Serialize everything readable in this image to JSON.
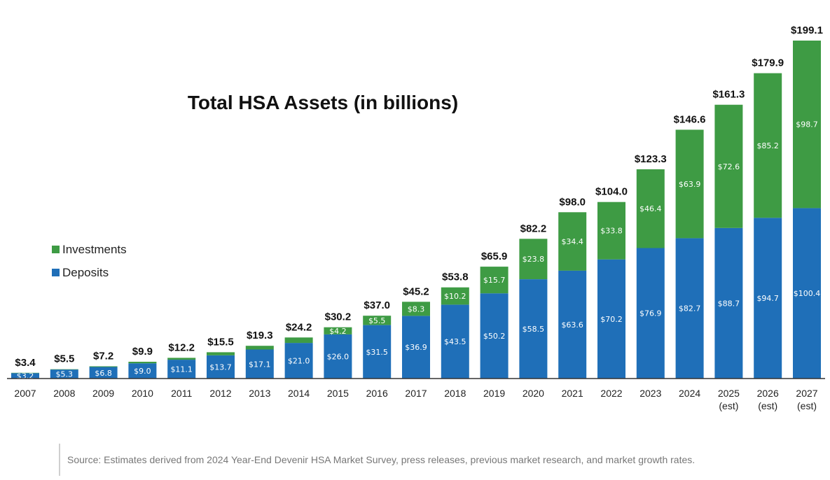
{
  "chart_data": {
    "type": "bar",
    "stacked": true,
    "title": "Total HSA Assets (in billions)",
    "categories": [
      [
        "2007"
      ],
      [
        "2008"
      ],
      [
        "2009"
      ],
      [
        "2010"
      ],
      [
        "2011"
      ],
      [
        "2012"
      ],
      [
        "2013"
      ],
      [
        "2014"
      ],
      [
        "2015"
      ],
      [
        "2016"
      ],
      [
        "2017"
      ],
      [
        "2018"
      ],
      [
        "2019"
      ],
      [
        "2020"
      ],
      [
        "2021"
      ],
      [
        "2022"
      ],
      [
        "2023"
      ],
      [
        "2024"
      ],
      [
        "2025",
        "(est)"
      ],
      [
        "2026",
        "(est)"
      ],
      [
        "2027",
        "(est)"
      ]
    ],
    "series": [
      {
        "name": "Deposits",
        "color": "#1f6fb8",
        "values": [
          3.2,
          5.3,
          6.8,
          9.0,
          11.1,
          13.7,
          17.1,
          21.0,
          26.0,
          31.5,
          36.9,
          43.5,
          50.2,
          58.5,
          63.6,
          70.2,
          76.9,
          82.7,
          88.7,
          94.7,
          100.4
        ],
        "value_labels": [
          "$3.2",
          "$5.3",
          "$6.8",
          "$9.0",
          "$11.1",
          "$13.7",
          "$17.1",
          "$21.0",
          "$26.0",
          "$31.5",
          "$36.9",
          "$43.5",
          "$50.2",
          "$58.5",
          "$63.6",
          "$70.2",
          "$76.9",
          "$82.7",
          "$88.7",
          "$94.7",
          "$100.4"
        ]
      },
      {
        "name": "Investments",
        "color": "#3e9b44",
        "values": [
          0.2,
          0.2,
          0.4,
          0.9,
          1.1,
          1.8,
          2.2,
          3.2,
          4.2,
          5.5,
          8.3,
          10.2,
          15.7,
          23.8,
          34.4,
          33.8,
          46.4,
          63.9,
          72.6,
          85.2,
          98.7
        ],
        "value_labels": [
          "",
          "",
          "",
          "",
          "",
          "",
          "",
          "",
          "$4.2",
          "$5.5",
          "$8.3",
          "$10.2",
          "$15.7",
          "$23.8",
          "$34.4",
          "$33.8",
          "$46.4",
          "$63.9",
          "$72.6",
          "$85.2",
          "$98.7"
        ]
      }
    ],
    "totals": [
      3.4,
      5.5,
      7.2,
      9.9,
      12.2,
      15.5,
      19.3,
      24.2,
      30.2,
      37.0,
      45.2,
      53.8,
      65.9,
      82.2,
      98.0,
      104.0,
      123.3,
      146.6,
      161.3,
      179.9,
      199.1
    ],
    "total_labels": [
      "$3.4",
      "$5.5",
      "$7.2",
      "$9.9",
      "$12.2",
      "$15.5",
      "$19.3",
      "$24.2",
      "$30.2",
      "$37.0",
      "$45.2",
      "$53.8",
      "$65.9",
      "$82.2",
      "$98.0",
      "$104.0",
      "$123.3",
      "$146.6",
      "$161.3",
      "$179.9",
      "$199.1"
    ],
    "ylim": [
      0,
      199.1
    ],
    "grid": false,
    "legend": {
      "placement": "left",
      "entries": [
        {
          "name": "Investments",
          "color": "#3e9b44"
        },
        {
          "name": "Deposits",
          "color": "#1f6fb8"
        }
      ]
    }
  },
  "source_note": "Source: Estimates derived from 2024 Year-End Devenir HSA Market Survey, press releases, previous market research, and market growth rates."
}
